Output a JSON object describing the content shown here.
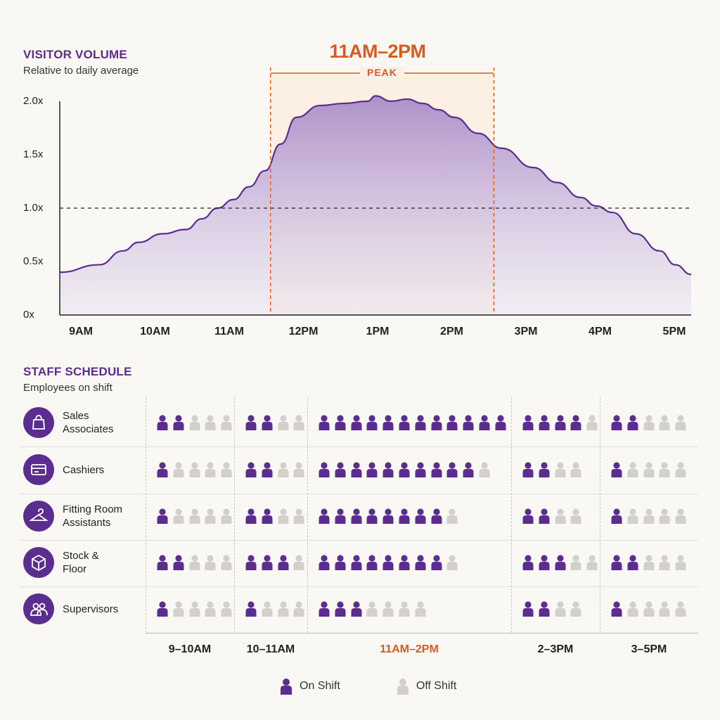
{
  "visitor": {
    "title": "VISITOR VOLUME",
    "subtitle": "Relative to daily average",
    "peak_title": "11AM–2PM",
    "peak_label": "PEAK",
    "y_ticks": [
      "2.0x",
      "1.5x",
      "1.0x",
      "0.5x",
      "0x"
    ],
    "x_ticks": [
      "9AM",
      "10AM",
      "11AM",
      "12PM",
      "1PM",
      "2PM",
      "3PM",
      "4PM",
      "5PM"
    ]
  },
  "chart_data": [
    {
      "type": "area",
      "title": "VISITOR VOLUME",
      "subtitle": "Relative to daily average",
      "x": [
        9.0,
        9.5,
        9.8,
        10.0,
        10.3,
        10.6,
        10.8,
        11.0,
        11.2,
        11.4,
        11.6,
        11.8,
        12.0,
        12.3,
        12.6,
        12.9,
        13.0,
        13.2,
        13.4,
        13.6,
        13.8,
        14.0,
        14.3,
        14.6,
        15.0,
        15.3,
        15.6,
        15.8,
        16.0,
        16.3,
        16.6,
        16.8,
        17.0
      ],
      "series": [
        {
          "values": [
            0.4,
            0.47,
            0.6,
            0.68,
            0.76,
            0.8,
            0.9,
            1.0,
            1.08,
            1.2,
            1.35,
            1.6,
            1.85,
            1.96,
            1.98,
            2.0,
            2.05,
            2.0,
            2.02,
            1.98,
            1.92,
            1.85,
            1.7,
            1.56,
            1.38,
            1.24,
            1.1,
            1.02,
            0.96,
            0.76,
            0.6,
            0.47,
            0.38
          ]
        }
      ],
      "ylim": [
        0,
        2.0
      ],
      "xlim": [
        9,
        17
      ],
      "reference_line": 1.0,
      "peak_band": [
        11.67,
        14.5
      ],
      "colors": {
        "line": "#5b2d8e",
        "fill": "#a98cc8",
        "peak": "#d85a1e"
      }
    },
    {
      "type": "table",
      "title": "STAFF SCHEDULE",
      "subtitle": "Employees on shift",
      "columns": [
        "9–10AM",
        "10–11AM",
        "11AM–2PM",
        "2–3PM",
        "3–5PM"
      ],
      "rows": [
        {
          "role": "Sales Associates",
          "on": [
            2,
            2,
            12,
            4,
            2
          ],
          "total": [
            5,
            4,
            12,
            5,
            5
          ]
        },
        {
          "role": "Cashiers",
          "on": [
            1,
            2,
            10,
            2,
            1
          ],
          "total": [
            5,
            4,
            11,
            4,
            5
          ]
        },
        {
          "role": "Fitting Room Assistants",
          "on": [
            1,
            2,
            8,
            2,
            1
          ],
          "total": [
            5,
            4,
            9,
            4,
            5
          ]
        },
        {
          "role": "Stock & Floor",
          "on": [
            2,
            3,
            8,
            3,
            2
          ],
          "total": [
            5,
            4,
            9,
            5,
            5
          ]
        },
        {
          "role": "Supervisors",
          "on": [
            1,
            1,
            3,
            2,
            1
          ],
          "total": [
            5,
            4,
            7,
            4,
            5
          ]
        }
      ],
      "colors": {
        "on_shift": "#5b2d8e",
        "off_shift": "#d3d0cc"
      }
    }
  ],
  "staff": {
    "title": "STAFF SCHEDULE",
    "subtitle": "Employees on shift",
    "rows": [
      {
        "label_1": "Sales",
        "label_2": "Associates",
        "icon": "shopping-bag-icon"
      },
      {
        "label_1": "Cashiers",
        "label_2": "",
        "icon": "credit-card-icon"
      },
      {
        "label_1": "Fitting Room",
        "label_2": "Assistants",
        "icon": "hanger-icon"
      },
      {
        "label_1": "Stock &",
        "label_2": "Floor",
        "icon": "box-icon"
      },
      {
        "label_1": "Supervisors",
        "label_2": "",
        "icon": "people-icon"
      }
    ],
    "columns": [
      "9–10AM",
      "10–11AM",
      "11AM–2PM",
      "2–3PM",
      "3–5PM"
    ]
  },
  "legend": {
    "on_label": "On Shift",
    "off_label": "Off Shift"
  }
}
